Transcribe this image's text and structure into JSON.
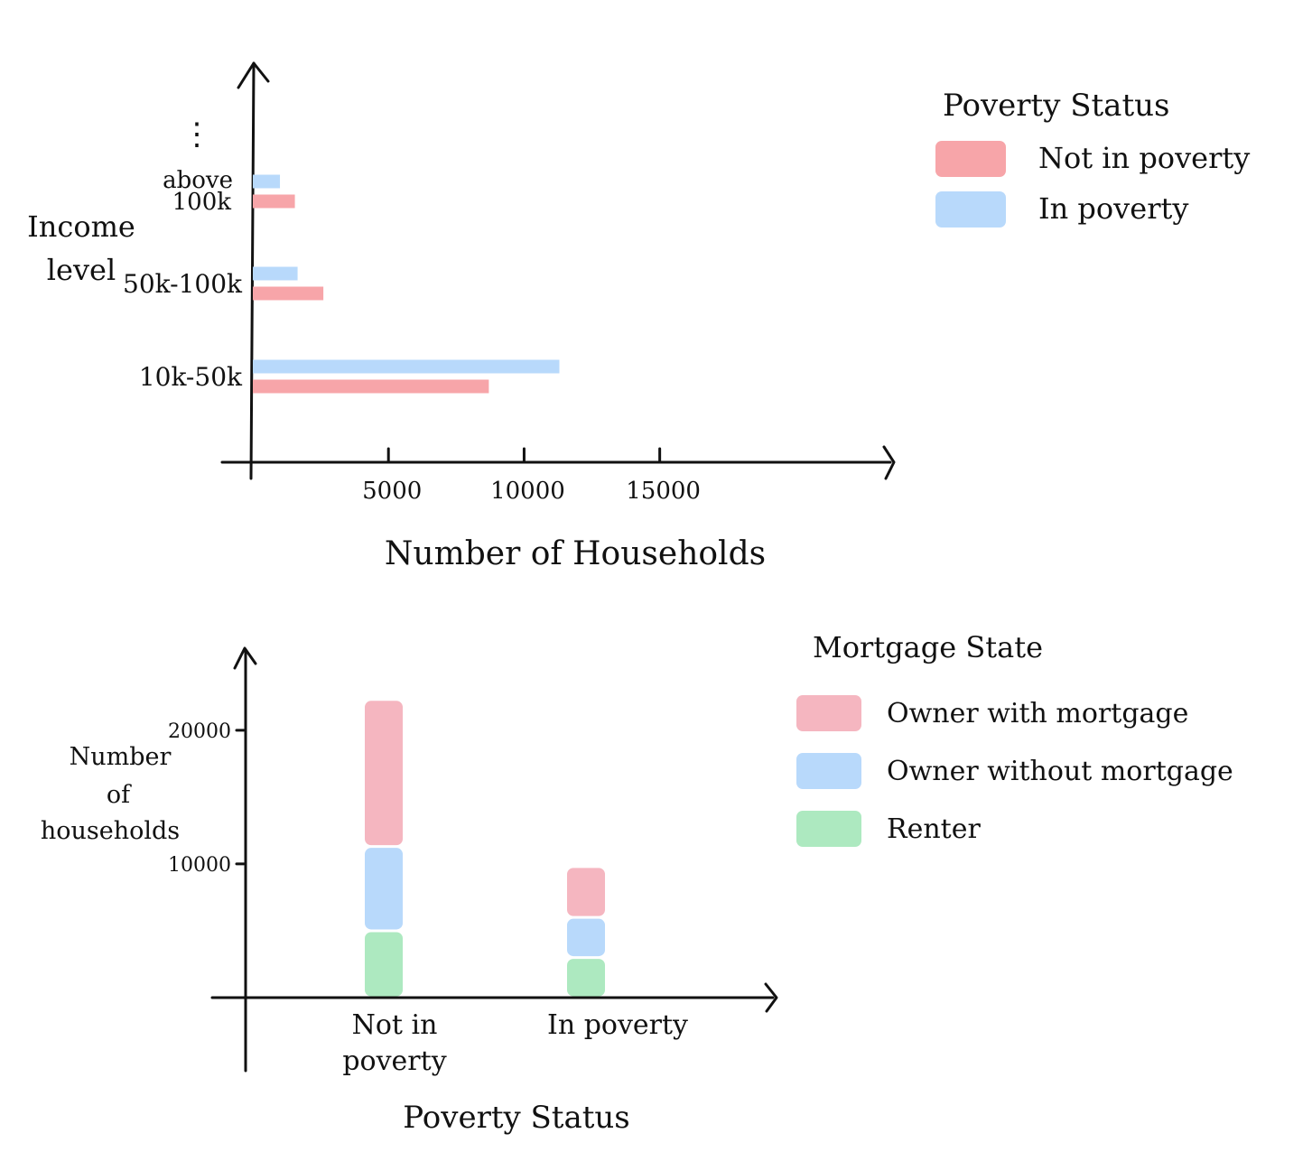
{
  "chart_data": [
    {
      "type": "bar",
      "orientation": "horizontal",
      "ylabel": [
        "Income",
        "level"
      ],
      "xlabel": "Number of Households",
      "categories": [
        "10k-50k",
        "50k-100k",
        "above 100k"
      ],
      "category_labels": [
        [
          "10k-50k"
        ],
        [
          "50k-100k"
        ],
        [
          "above",
          "100k"
        ]
      ],
      "x_ticks": [
        {
          "value": 5000,
          "label": "5000"
        },
        {
          "value": 10000,
          "label": "10000"
        },
        {
          "value": 15000,
          "label": "15000"
        }
      ],
      "xlim": [
        0,
        23500
      ],
      "axis_continuation_mark": "⋮",
      "series": [
        {
          "name": "In poverty",
          "color": "#b8d9fb",
          "values": [
            11300,
            1650,
            1000
          ]
        },
        {
          "name": "Not in poverty",
          "color": "#f7a5a9",
          "values": [
            8700,
            2600,
            1550
          ]
        }
      ],
      "legend": {
        "title": "Poverty Status",
        "position": "top-right",
        "entries": [
          {
            "label": "Not in poverty",
            "color": "#f7a5a9"
          },
          {
            "label": "In poverty",
            "color": "#b8d9fb"
          }
        ]
      },
      "grid": false
    },
    {
      "type": "bar",
      "stacked": true,
      "xlabel": "Poverty Status",
      "ylabel": [
        "Number",
        "of",
        "households"
      ],
      "categories": [
        "Not in poverty",
        "In poverty"
      ],
      "category_labels": [
        [
          "Not in",
          "poverty"
        ],
        [
          "In poverty"
        ]
      ],
      "y_ticks": [
        {
          "value": 10000,
          "label": "10000"
        },
        {
          "value": 20000,
          "label": "20000"
        }
      ],
      "ylim": [
        0,
        26000
      ],
      "series": [
        {
          "name": "Renter",
          "color": "#ade9c0",
          "values": [
            5000,
            3000
          ]
        },
        {
          "name": "Owner without mortgage",
          "color": "#b8d9fb",
          "values": [
            6300,
            3000
          ]
        },
        {
          "name": "Owner with mortgage",
          "color": "#f5b6c0",
          "values": [
            11000,
            3800
          ]
        }
      ],
      "legend": {
        "title": "Mortgage State",
        "position": "right",
        "entries": [
          {
            "label": "Owner with mortgage",
            "color": "#f5b6c0"
          },
          {
            "label": "Owner without mortgage",
            "color": "#b8d9fb"
          },
          {
            "label": "Renter",
            "color": "#ade9c0"
          }
        ]
      },
      "grid": false
    }
  ]
}
